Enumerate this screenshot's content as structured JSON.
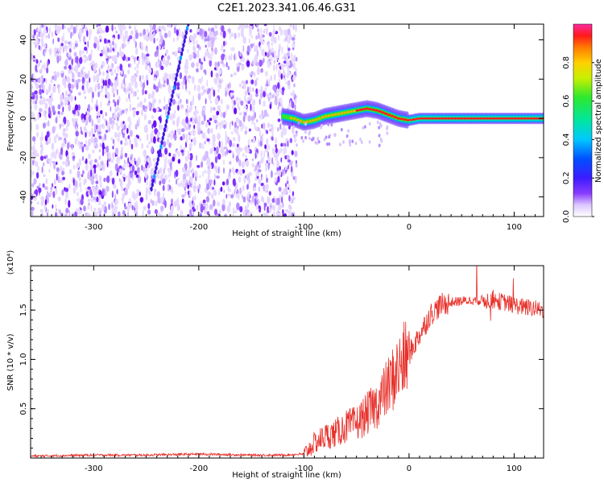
{
  "title": "C2E1.2023.341.06.46.G31",
  "chart_data": [
    {
      "type": "heatmap",
      "xlabel": "Height of straight line (km)",
      "ylabel": "Frequency (Hz)",
      "xlim": [
        -360,
        128
      ],
      "ylim": [
        -50,
        48
      ],
      "xticks": [
        -300,
        -200,
        -100,
        0,
        100
      ],
      "yticks": [
        -40,
        -20,
        0,
        20,
        40
      ],
      "noise_region_x": [
        -360,
        -110
      ],
      "ridge": {
        "x": [
          -120,
          -110,
          -100,
          -90,
          -80,
          -70,
          -60,
          -50,
          -40,
          -30,
          -20,
          -10,
          0,
          10,
          20,
          40,
          60,
          80,
          100,
          128
        ],
        "y": [
          1,
          0,
          -2,
          -1,
          1,
          2,
          3,
          4,
          5,
          4,
          2,
          0,
          -1,
          0,
          0,
          0,
          0,
          0,
          0,
          0
        ]
      },
      "colorbar": {
        "label": "Normalized spectral amplitude",
        "ticks": [
          0.0,
          0.2,
          0.4,
          0.6,
          0.8
        ],
        "range": [
          0,
          1
        ]
      }
    },
    {
      "type": "line",
      "xlabel": "Height of straight line (km)",
      "ylabel": "SNR (10 * v/v)",
      "scale_note": "(x10⁴)",
      "xlim": [
        -360,
        128
      ],
      "ylim": [
        0,
        1.95
      ],
      "xticks": [
        -300,
        -200,
        -100,
        0,
        100
      ],
      "yticks": [
        0.5,
        1.0,
        1.5
      ],
      "ytick_labels": [
        "0.5",
        "1.0",
        "1.5"
      ],
      "series": [
        {
          "color": "#e8302a",
          "x": [
            -360,
            -300,
            -250,
            -200,
            -150,
            -120,
            -100,
            -90,
            -80,
            -70,
            -60,
            -50,
            -40,
            -30,
            -20,
            -10,
            0,
            10,
            20,
            30,
            40,
            60,
            80,
            90,
            100,
            110,
            128
          ],
          "y": [
            0.02,
            0.03,
            0.03,
            0.04,
            0.03,
            0.03,
            0.04,
            0.15,
            0.22,
            0.25,
            0.32,
            0.35,
            0.45,
            0.55,
            0.72,
            0.9,
            1.05,
            1.25,
            1.45,
            1.55,
            1.58,
            1.6,
            1.6,
            1.58,
            1.55,
            1.53,
            1.5
          ]
        }
      ]
    }
  ]
}
